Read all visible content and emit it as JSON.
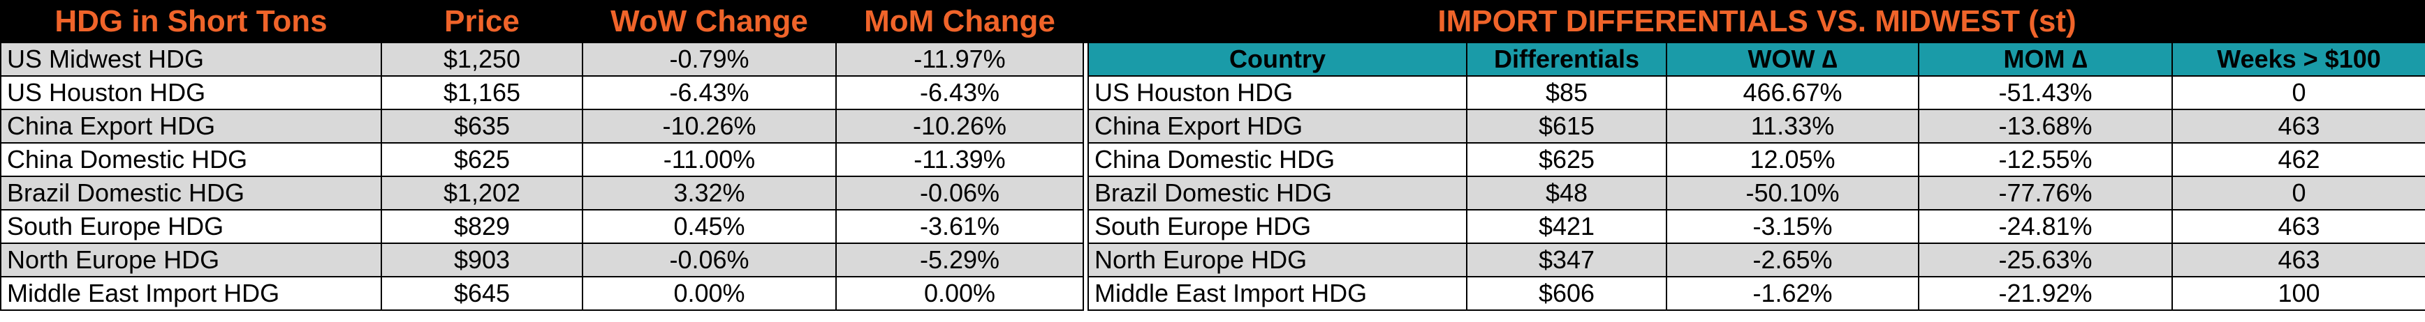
{
  "left_table": {
    "headers": [
      "HDG in Short Tons",
      "Price",
      "WoW Change",
      "MoM Change"
    ],
    "rows": [
      [
        "US Midwest HDG",
        "$1,250",
        "-0.79%",
        "-11.97%"
      ],
      [
        "US Houston HDG",
        "$1,165",
        "-6.43%",
        "-6.43%"
      ],
      [
        "China Export HDG",
        "$635",
        "-10.26%",
        "-10.26%"
      ],
      [
        "China Domestic HDG",
        "$625",
        "-11.00%",
        "-11.39%"
      ],
      [
        "Brazil Domestic HDG",
        "$1,202",
        "3.32%",
        "-0.06%"
      ],
      [
        "South Europe HDG",
        "$829",
        "0.45%",
        "-3.61%"
      ],
      [
        "North Europe HDG",
        "$903",
        "-0.06%",
        "-5.29%"
      ],
      [
        "Middle East Import HDG",
        "$645",
        "0.00%",
        "0.00%"
      ]
    ]
  },
  "right_table": {
    "title": "IMPORT DIFFERENTIALS VS. MIDWEST (st)",
    "headers": [
      "Country",
      "Differentials",
      "WOW ∆",
      "MOM ∆",
      "Weeks > $100"
    ],
    "rows": [
      [
        "US Houston HDG",
        "$85",
        "466.67%",
        "-51.43%",
        "0"
      ],
      [
        "China Export HDG",
        "$615",
        "11.33%",
        "-13.68%",
        "463"
      ],
      [
        "China Domestic HDG",
        "$625",
        "12.05%",
        "-12.55%",
        "462"
      ],
      [
        "Brazil Domestic HDG",
        "$48",
        "-50.10%",
        "-77.76%",
        "0"
      ],
      [
        "South Europe HDG",
        "$421",
        "-3.15%",
        "-24.81%",
        "463"
      ],
      [
        "North Europe HDG",
        "$347",
        "-2.65%",
        "-25.63%",
        "463"
      ],
      [
        "Middle East Import HDG",
        "$606",
        "-1.62%",
        "-21.92%",
        "100"
      ]
    ]
  }
}
